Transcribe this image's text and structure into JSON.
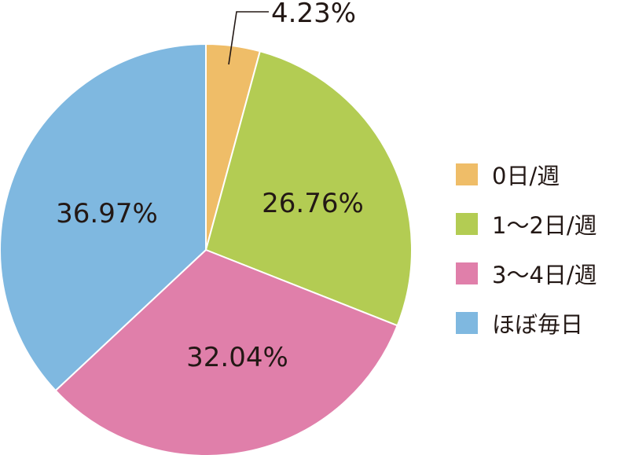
{
  "chart_data": {
    "type": "pie",
    "categories": [
      "0日/週",
      "1〜2日/週",
      "3〜4日/週",
      "ほぼ毎日"
    ],
    "values": [
      4.23,
      26.76,
      32.04,
      36.97
    ],
    "labels": [
      "4.23%",
      "26.76%",
      "32.04%",
      "36.97%"
    ],
    "colors": [
      "#EFBD68",
      "#B3CC53",
      "#E07FAA",
      "#7FB8E0"
    ],
    "start_angle": "12 o'clock, clockwise",
    "legend_position": "right"
  }
}
